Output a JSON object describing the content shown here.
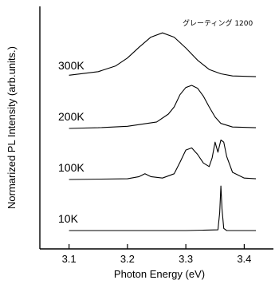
{
  "chart_data": {
    "type": "line",
    "title": "",
    "xlabel": "Photon Energy (eV)",
    "ylabel": "Normarized PL Intensity (arb.units.)",
    "xlim": [
      3.05,
      3.45
    ],
    "x_ticks": [
      3.1,
      3.2,
      3.3,
      3.4
    ],
    "x_tick_labels": [
      "3.1",
      "3.2",
      "3.3",
      "3.4"
    ],
    "y_ticks_shown": false,
    "grid": false,
    "annotation": "グレーティング 1200",
    "series": [
      {
        "name": "300K",
        "baseline_offset": 3,
        "points": [
          [
            3.1,
            0.03
          ],
          [
            3.15,
            0.08
          ],
          [
            3.18,
            0.16
          ],
          [
            3.2,
            0.27
          ],
          [
            3.22,
            0.42
          ],
          [
            3.24,
            0.56
          ],
          [
            3.26,
            0.62
          ],
          [
            3.28,
            0.56
          ],
          [
            3.3,
            0.41
          ],
          [
            3.32,
            0.24
          ],
          [
            3.34,
            0.11
          ],
          [
            3.36,
            0.05
          ],
          [
            3.38,
            0.02
          ],
          [
            3.42,
            0.01
          ]
        ]
      },
      {
        "name": "200K",
        "baseline_offset": 2,
        "points": [
          [
            3.1,
            0.0
          ],
          [
            3.15,
            0.01
          ],
          [
            3.2,
            0.03
          ],
          [
            3.25,
            0.09
          ],
          [
            3.27,
            0.2
          ],
          [
            3.28,
            0.3
          ],
          [
            3.29,
            0.47
          ],
          [
            3.3,
            0.57
          ],
          [
            3.31,
            0.6
          ],
          [
            3.32,
            0.56
          ],
          [
            3.33,
            0.45
          ],
          [
            3.34,
            0.3
          ],
          [
            3.35,
            0.16
          ],
          [
            3.36,
            0.07
          ],
          [
            3.38,
            0.02
          ],
          [
            3.42,
            0.01
          ]
        ]
      },
      {
        "name": "100K",
        "baseline_offset": 1,
        "points": [
          [
            3.1,
            0.0
          ],
          [
            3.2,
            0.01
          ],
          [
            3.22,
            0.04
          ],
          [
            3.23,
            0.08
          ],
          [
            3.24,
            0.04
          ],
          [
            3.26,
            0.02
          ],
          [
            3.28,
            0.08
          ],
          [
            3.29,
            0.24
          ],
          [
            3.3,
            0.41
          ],
          [
            3.31,
            0.44
          ],
          [
            3.32,
            0.35
          ],
          [
            3.33,
            0.23
          ],
          [
            3.34,
            0.18
          ],
          [
            3.345,
            0.3
          ],
          [
            3.35,
            0.52
          ],
          [
            3.355,
            0.38
          ],
          [
            3.36,
            0.55
          ],
          [
            3.365,
            0.52
          ],
          [
            3.37,
            0.32
          ],
          [
            3.38,
            0.1
          ],
          [
            3.4,
            0.02
          ],
          [
            3.42,
            0.01
          ]
        ]
      },
      {
        "name": "10K",
        "baseline_offset": 0,
        "points": [
          [
            3.1,
            0.0
          ],
          [
            3.3,
            0.0
          ],
          [
            3.355,
            0.01
          ],
          [
            3.358,
            0.25
          ],
          [
            3.36,
            0.62
          ],
          [
            3.362,
            0.3
          ],
          [
            3.365,
            0.03
          ],
          [
            3.37,
            0.0
          ],
          [
            3.42,
            0.0
          ]
        ]
      }
    ]
  }
}
